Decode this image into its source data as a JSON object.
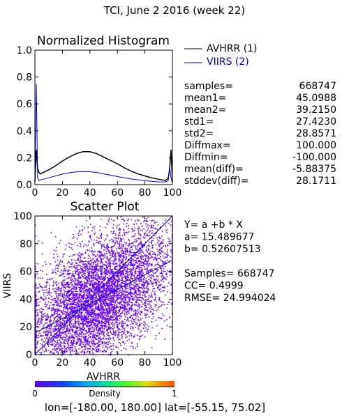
{
  "page_title": "TCI,  June 2 2016 (week 22)",
  "stats": {
    "rows": [
      {
        "label": "samples=",
        "value": "668747"
      },
      {
        "label": "mean1=",
        "value": "45.0988"
      },
      {
        "label": "mean2=",
        "value": "39.2150"
      },
      {
        "label": "std1=",
        "value": "27.4230"
      },
      {
        "label": "std2=",
        "value": "28.8571"
      },
      {
        "label": "Diffmax=",
        "value": "100.000"
      },
      {
        "label": "Diffmin=",
        "value": "-100.000"
      },
      {
        "label": "mean(diff)=",
        "value": "-5.88375"
      },
      {
        "label": "stddev(diff)=",
        "value": "28.1711"
      }
    ]
  },
  "regression": {
    "lines": [
      "Y= a +b * X",
      "a= 15.489677",
      "b= 0.52607513",
      "",
      "Samples= 668747",
      "CC=  0.4999",
      "RMSE= 24.994024"
    ]
  },
  "footer": {
    "range_text": "lon=[-180.00, 180.00] lat=[-55.15, 75.02]"
  },
  "chart_data": [
    {
      "type": "line",
      "title": "Normalized Histogram",
      "xlabel": "",
      "ylabel": "",
      "xlim": [
        0,
        100
      ],
      "ylim": [
        0,
        1
      ],
      "xticks": [
        "0",
        "20",
        "40",
        "60",
        "80",
        "100"
      ],
      "yticks": [
        "0.0",
        "0.2",
        "0.4",
        "0.6",
        "0.8",
        "1.0"
      ],
      "series": [
        {
          "name": "AVHRR (1)",
          "color": "#000000",
          "x": [
            0,
            1,
            2,
            3,
            4,
            5,
            10,
            15,
            20,
            25,
            30,
            35,
            40,
            45,
            50,
            55,
            60,
            65,
            70,
            75,
            80,
            85,
            90,
            95,
            97,
            98,
            99,
            100
          ],
          "y": [
            0.02,
            0.26,
            0.12,
            0.09,
            0.08,
            0.085,
            0.11,
            0.14,
            0.175,
            0.205,
            0.23,
            0.245,
            0.245,
            0.23,
            0.205,
            0.18,
            0.155,
            0.125,
            0.1,
            0.08,
            0.065,
            0.05,
            0.04,
            0.03,
            0.05,
            0.12,
            0.26,
            0.02
          ]
        },
        {
          "name": "VIIRS (2)",
          "color": "#0000cc",
          "x": [
            0,
            1,
            2,
            3,
            4,
            5,
            10,
            15,
            20,
            25,
            30,
            35,
            40,
            45,
            50,
            55,
            60,
            65,
            70,
            75,
            80,
            85,
            90,
            95,
            97,
            98,
            99,
            100
          ],
          "y": [
            0.01,
            0.75,
            0.05,
            0.03,
            0.035,
            0.038,
            0.05,
            0.065,
            0.078,
            0.088,
            0.095,
            0.098,
            0.096,
            0.09,
            0.08,
            0.07,
            0.06,
            0.05,
            0.042,
            0.036,
            0.03,
            0.025,
            0.02,
            0.02,
            0.03,
            0.13,
            0.05,
            0.01
          ]
        }
      ]
    },
    {
      "type": "scatter",
      "title": "Scatter Plot",
      "xlabel": "AVHRR",
      "ylabel": "VIIRS",
      "xlim": [
        0,
        100
      ],
      "ylim": [
        0,
        100
      ],
      "xticks": [
        "0",
        "20",
        "40",
        "60",
        "80",
        "100"
      ],
      "yticks": [
        "0",
        "20",
        "40",
        "60",
        "80",
        "100"
      ],
      "regression_line": {
        "a": 15.489677,
        "b": 0.52607513
      },
      "one_to_one_line": true,
      "point_color": "#6600ff",
      "colorbar": {
        "label": "Density",
        "min_label": "0",
        "max_label": "1"
      }
    }
  ]
}
